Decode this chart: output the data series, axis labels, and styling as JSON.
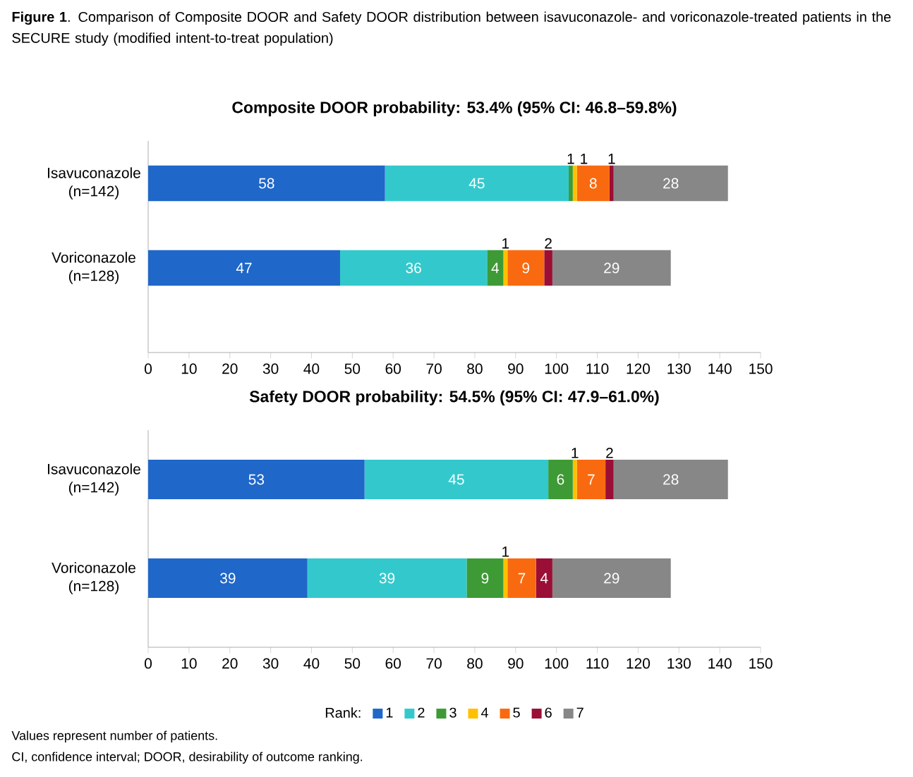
{
  "chart_data": [
    {
      "type": "bar",
      "orientation": "horizontal",
      "stacked": true,
      "data_labels": true,
      "legend": false,
      "title": "Composite DOOR probability: 53.4% (95% CI: 46.8–59.8%)",
      "annotations": [
        "**Figure 1**. Comparison of Composite DOOR and Safety DOOR distribution between isavuconazole- and voriconazole-treated patients in the SECURE study (modified intent-to-treat population)"
      ],
      "categories": [
        "Isavuconazole (n=142)",
        "Voriconazole (n=128)"
      ],
      "xlim": [
        0,
        150
      ],
      "xticks": [
        0,
        10,
        20,
        30,
        40,
        50,
        60,
        70,
        80,
        90,
        100,
        110,
        120,
        130,
        140,
        150
      ],
      "series": [
        {
          "color": "#1f67c9",
          "values": [
            58,
            47
          ]
        },
        {
          "color": "#33c9cc",
          "values": [
            45,
            36
          ]
        },
        {
          "color": "#3e9a35",
          "values": [
            1,
            4
          ]
        },
        {
          "color": "#ffc000",
          "values": [
            1,
            1
          ]
        },
        {
          "color": "#f96a10",
          "values": [
            8,
            9
          ]
        },
        {
          "color": "#9b0e36",
          "values": [
            1,
            2
          ]
        },
        {
          "color": "#878787",
          "values": [
            28,
            29
          ]
        }
      ]
    },
    {
      "type": "bar",
      "orientation": "horizontal",
      "stacked": true,
      "data_labels": true,
      "legend": "bottom",
      "legend_title": "Rank:",
      "title": "Safety DOOR probability: 54.5% (95% CI: 47.9–61.0%)",
      "annotations": [
        "Values represent number of patients.",
        "CI, confidence interval; DOOR, desirability of outcome ranking."
      ],
      "categories": [
        "Isavuconazole (n=142)",
        "Voriconazole (n=128)"
      ],
      "xlim": [
        0,
        150
      ],
      "xticks": [
        0,
        10,
        20,
        30,
        40,
        50,
        60,
        70,
        80,
        90,
        100,
        110,
        120,
        130,
        140,
        150
      ],
      "series": [
        {
          "name": "1",
          "color": "#1f67c9",
          "values": [
            53,
            39
          ]
        },
        {
          "name": "2",
          "color": "#33c9cc",
          "values": [
            45,
            39
          ]
        },
        {
          "name": "3",
          "color": "#3e9a35",
          "values": [
            6,
            9
          ]
        },
        {
          "name": "4",
          "color": "#ffc000",
          "values": [
            1,
            1
          ]
        },
        {
          "name": "5",
          "color": "#f96a10",
          "values": [
            7,
            7
          ]
        },
        {
          "name": "6",
          "color": "#9b0e36",
          "values": [
            2,
            4
          ]
        },
        {
          "name": "7",
          "color": "#878787",
          "values": [
            28,
            29
          ]
        }
      ]
    }
  ]
}
